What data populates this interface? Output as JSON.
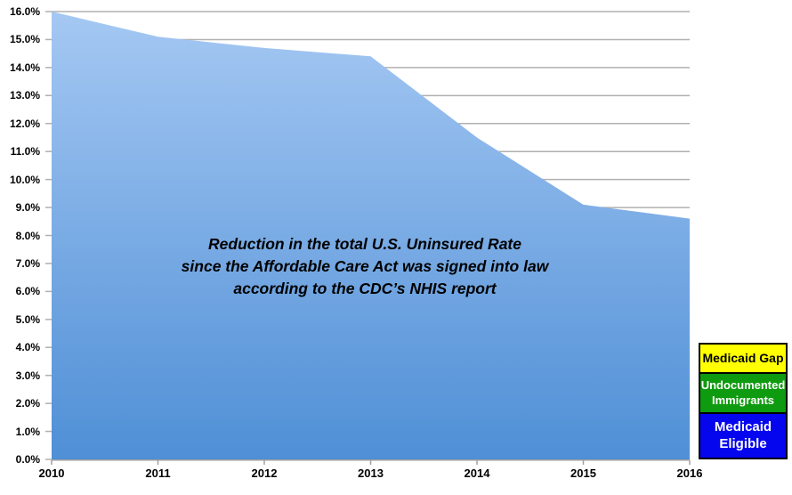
{
  "chart_data": {
    "type": "area",
    "title_lines": [
      "Reduction in the total U.S. Uninsured Rate",
      "since the Affordable Care Act was signed into law",
      "according to the CDC’s NHIS report"
    ],
    "categories": [
      "2010",
      "2011",
      "2012",
      "2013",
      "2014",
      "2015",
      "2016"
    ],
    "series": [
      {
        "name": "U.S. Uninsured Rate",
        "values": [
          16.0,
          15.1,
          14.7,
          14.4,
          11.5,
          9.1,
          8.6
        ]
      }
    ],
    "unit": "%",
    "ylim": [
      0,
      16
    ],
    "y_tick_step": 1.0,
    "y_tick_labels": [
      "0.0%",
      "1.0%",
      "2.0%",
      "3.0%",
      "4.0%",
      "5.0%",
      "6.0%",
      "7.0%",
      "8.0%",
      "9.0%",
      "10.0%",
      "11.0%",
      "12.0%",
      "13.0%",
      "14.0%",
      "15.0%",
      "16.0%"
    ],
    "grid": true,
    "gridline_color": "#B0B0B0",
    "axis_line_color": "#A0A0A0",
    "area_gradient": {
      "top": "#A5C8F3",
      "bottom": "#4F8FD6"
    },
    "legend": {
      "position": "bottom-right",
      "items": [
        {
          "label": "Medicaid Gap",
          "bg": "#FFFF00",
          "text_color": "#000000"
        },
        {
          "label": "Undocumented Immigrants",
          "bg": "#0F9B0F",
          "text_color": "#FFFFFF"
        },
        {
          "label": "Medicaid Eligible",
          "bg": "#0505EE",
          "text_color": "#FFFFFF"
        }
      ]
    }
  }
}
